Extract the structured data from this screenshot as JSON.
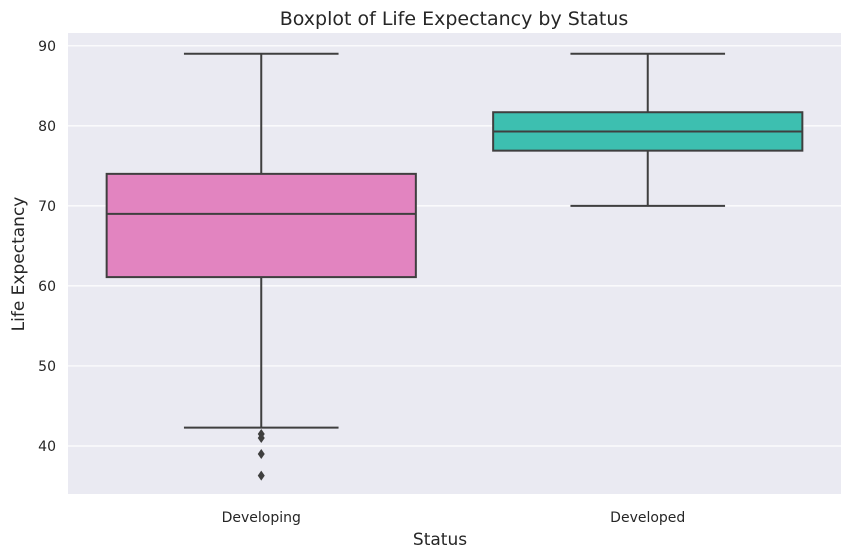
{
  "chart_data": {
    "type": "box",
    "title": "Boxplot of Life Expectancy by Status",
    "xlabel": "Status",
    "ylabel": "Life Expectancy",
    "ylim": [
      34,
      91.6
    ],
    "yticks": [
      40,
      50,
      60,
      70,
      80,
      90
    ],
    "grid": true,
    "categories": [
      "Developing",
      "Developed"
    ],
    "boxes": [
      {
        "category": "Developing",
        "color": "#e284c0",
        "whisker_low": 42.3,
        "q1": 61.1,
        "median": 69.0,
        "q3": 74.0,
        "whisker_high": 89.0,
        "outliers": [
          41.5,
          41.0,
          39.0,
          36.3
        ]
      },
      {
        "category": "Developed",
        "color": "#3dbfb0",
        "whisker_low": 70.0,
        "q1": 76.9,
        "median": 79.3,
        "q3": 81.7,
        "whisker_high": 89.0,
        "outliers": []
      }
    ]
  }
}
